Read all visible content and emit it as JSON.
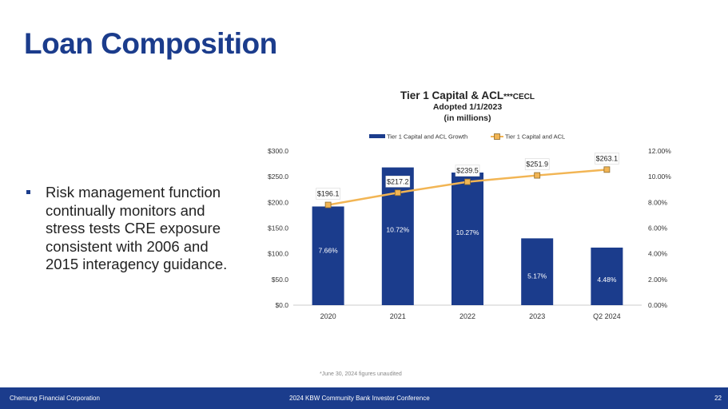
{
  "slide": {
    "title": "Loan Composition",
    "bullets": [
      "Risk management function continually monitors and stress tests CRE exposure consistent with 2006 and 2015 interagency guidance."
    ],
    "footnote": "*June 30, 2024 figures unaudited"
  },
  "footer": {
    "company": "Chemung Financial Corporation",
    "event": "2024 KBW Community Bank Investor Conference",
    "page": "22"
  },
  "colors": {
    "brand": "#1b3c8c",
    "bar": "#1b3c8c",
    "line": "#f2b554"
  },
  "chart_data": {
    "type": "bar",
    "title": "Tier 1 Capital & ACL",
    "title_suffix": "***CECL",
    "subtitle": "Adopted 1/1/2023",
    "units": "(in millions)",
    "categories": [
      "2020",
      "2021",
      "2022",
      "2023",
      "Q2 2024"
    ],
    "series": [
      {
        "name": "Tier 1 Capital and ACL Growth",
        "type": "bar",
        "axis": "left",
        "values": [
          192,
          268,
          258,
          130,
          112
        ],
        "labels": [
          "7.66%",
          "10.72%",
          "10.27%",
          "5.17%",
          "4.48%"
        ]
      },
      {
        "name": "Tier 1 Capital and ACL",
        "type": "line",
        "axis": "right",
        "values": [
          7.8,
          8.75,
          9.6,
          10.1,
          10.55
        ],
        "labels": [
          "$196.1",
          "$217.2",
          "$239.5",
          "$251.9",
          "$263.1"
        ]
      }
    ],
    "y_left": {
      "min": 0,
      "max": 300,
      "ticks": [
        "$0.0",
        "$50.0",
        "$100.0",
        "$150.0",
        "$200.0",
        "$250.0",
        "$300.0"
      ]
    },
    "y_right": {
      "min": 0,
      "max": 12,
      "ticks": [
        "0.00%",
        "2.00%",
        "4.00%",
        "6.00%",
        "8.00%",
        "10.00%",
        "12.00%"
      ]
    },
    "legend_position": "top-center",
    "grid": false
  }
}
